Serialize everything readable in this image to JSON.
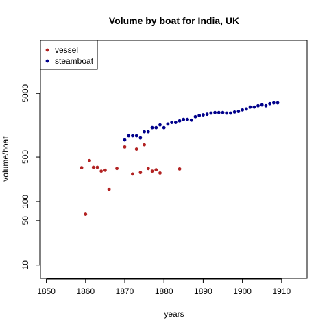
{
  "chart_data": {
    "type": "scatter",
    "title": "Volume by boat for India, UK",
    "xlabel": "years",
    "ylabel": "volume/boat",
    "xlim": [
      1848.5,
      1916.5
    ],
    "xticks": [
      1850,
      1860,
      1870,
      1880,
      1890,
      1900,
      1910
    ],
    "y_scale": "log",
    "ylim": [
      6.2,
      34000
    ],
    "yticks": [
      10,
      50,
      100,
      500,
      5000
    ],
    "grid": false,
    "legend_position": "top-left",
    "series": [
      {
        "name": "vessel",
        "color": "#b22222",
        "points": [
          [
            1859,
            340
          ],
          [
            1860,
            63
          ],
          [
            1861,
            440
          ],
          [
            1862,
            345
          ],
          [
            1863,
            345
          ],
          [
            1864,
            300
          ],
          [
            1865,
            310
          ],
          [
            1866,
            155
          ],
          [
            1868,
            330
          ],
          [
            1870,
            720
          ],
          [
            1872,
            270
          ],
          [
            1873,
            665
          ],
          [
            1874,
            285
          ],
          [
            1875,
            780
          ],
          [
            1876,
            330
          ],
          [
            1877,
            300
          ],
          [
            1878,
            315
          ],
          [
            1879,
            280
          ],
          [
            1884,
            325
          ]
        ]
      },
      {
        "name": "steamboat",
        "color": "#00008b",
        "points": [
          [
            1870,
            930
          ],
          [
            1871,
            1080
          ],
          [
            1872,
            1080
          ],
          [
            1873,
            1080
          ],
          [
            1874,
            1000
          ],
          [
            1875,
            1250
          ],
          [
            1876,
            1250
          ],
          [
            1877,
            1450
          ],
          [
            1878,
            1450
          ],
          [
            1879,
            1600
          ],
          [
            1880,
            1450
          ],
          [
            1881,
            1650
          ],
          [
            1882,
            1750
          ],
          [
            1883,
            1750
          ],
          [
            1884,
            1850
          ],
          [
            1885,
            1950
          ],
          [
            1886,
            1950
          ],
          [
            1887,
            1900
          ],
          [
            1888,
            2150
          ],
          [
            1889,
            2250
          ],
          [
            1890,
            2300
          ],
          [
            1891,
            2350
          ],
          [
            1892,
            2450
          ],
          [
            1893,
            2500
          ],
          [
            1894,
            2500
          ],
          [
            1895,
            2500
          ],
          [
            1896,
            2450
          ],
          [
            1897,
            2450
          ],
          [
            1898,
            2550
          ],
          [
            1899,
            2600
          ],
          [
            1900,
            2750
          ],
          [
            1901,
            2850
          ],
          [
            1902,
            3050
          ],
          [
            1903,
            3050
          ],
          [
            1904,
            3200
          ],
          [
            1905,
            3300
          ],
          [
            1906,
            3200
          ],
          [
            1907,
            3450
          ],
          [
            1908,
            3550
          ],
          [
            1909,
            3550
          ]
        ]
      }
    ]
  }
}
